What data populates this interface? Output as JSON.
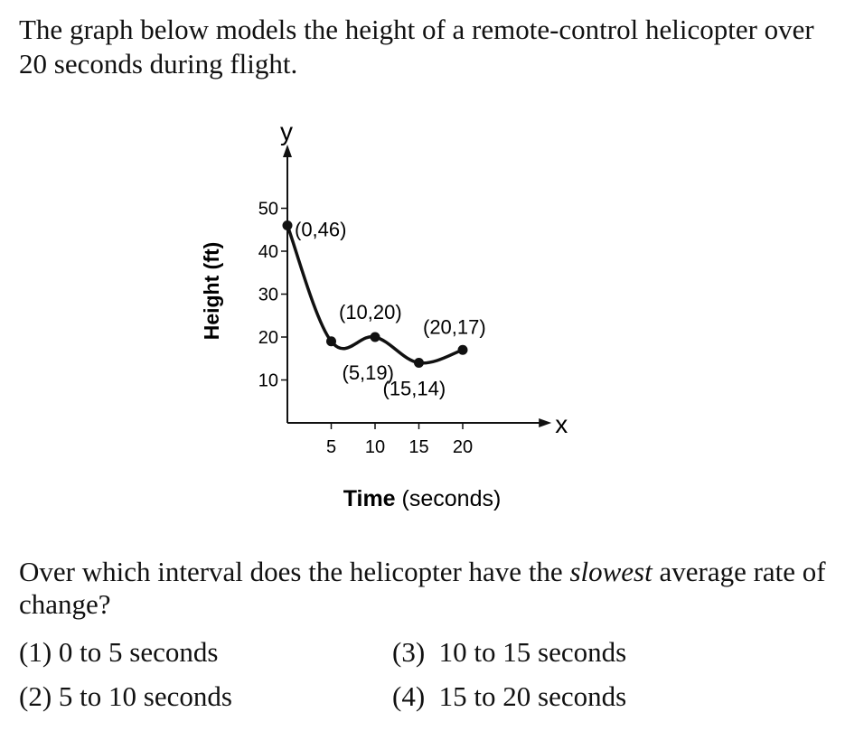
{
  "intro": "The graph below models the height of a remote-control helicopter over 20 seconds during flight.",
  "question": {
    "before": "Over which interval does the helicopter have the ",
    "emphasis": "slowest",
    "after": " average rate of change?"
  },
  "choices": [
    {
      "num": "(1)",
      "text": "0 to 5 seconds"
    },
    {
      "num": "(2)",
      "text": "5 to 10 seconds"
    },
    {
      "num": "(3)",
      "text": "10 to 15 seconds"
    },
    {
      "num": "(4)",
      "text": "15 to 20 seconds"
    }
  ],
  "chart_data": {
    "type": "line",
    "x_axis_letter": "x",
    "y_axis_letter": "y",
    "xlabel_bold": "Time",
    "xlabel_rest": " (seconds)",
    "ylabel": "Height (ft)",
    "xlim": [
      0,
      26
    ],
    "ylim": [
      0,
      60
    ],
    "x_ticks": [
      5,
      10,
      15,
      20
    ],
    "y_ticks": [
      10,
      20,
      30,
      40,
      50
    ],
    "points": [
      {
        "x": 0,
        "y": 46,
        "label": "(0,46)"
      },
      {
        "x": 5,
        "y": 19,
        "label": "(5,19)"
      },
      {
        "x": 10,
        "y": 20,
        "label": "(10,20)"
      },
      {
        "x": 15,
        "y": 14,
        "label": "(15,14)"
      },
      {
        "x": 20,
        "y": 17,
        "label": "(20,17)"
      }
    ],
    "grid": false,
    "colors": {
      "line": "#111111"
    }
  }
}
